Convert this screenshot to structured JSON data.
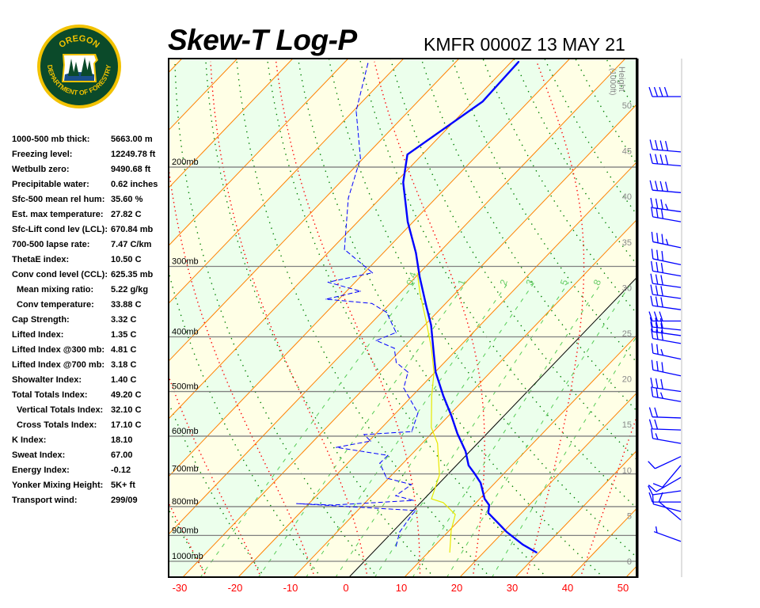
{
  "header": {
    "title": "Skew-T Log-P",
    "station_time": "KMFR 0000Z 13 MAY 21"
  },
  "logo": {
    "top_text": "OREGON",
    "bottom_text": "DEPARTMENT OF FORESTRY",
    "colors": {
      "ring": "#f2c200",
      "field": "#0b4a2a"
    }
  },
  "stats": [
    {
      "label": "1000-500 mb thick:",
      "value": "5663.00 m"
    },
    {
      "label": "Freezing level:",
      "value": "12249.78 ft"
    },
    {
      "label": "Wetbulb zero:",
      "value": "9490.68 ft"
    },
    {
      "label": "Precipitable water:",
      "value": "0.62 inches"
    },
    {
      "label": "Sfc-500 mean rel hum:",
      "value": "35.60 %"
    },
    {
      "label": "Est. max temperature:",
      "value": "27.82 C"
    },
    {
      "label": "Sfc-Lift cond lev (LCL):",
      "value": "670.84 mb"
    },
    {
      "label": "700-500 lapse rate:",
      "value": "7.47 C/km"
    },
    {
      "label": "ThetaE index:",
      "value": "10.50 C"
    },
    {
      "label": "Conv cond level (CCL):",
      "value": "625.35 mb"
    },
    {
      "label": "Mean mixing ratio:",
      "value": "5.22 g/kg",
      "indent": true
    },
    {
      "label": "Conv temperature:",
      "value": "33.88 C",
      "indent": true
    },
    {
      "label": "Cap Strength:",
      "value": "3.32 C"
    },
    {
      "label": "Lifted Index:",
      "value": "1.35 C"
    },
    {
      "label": "Lifted Index @300 mb:",
      "value": "4.81 C"
    },
    {
      "label": "Lifted Index @700 mb:",
      "value": "3.18 C"
    },
    {
      "label": "Showalter Index:",
      "value": "1.40 C"
    },
    {
      "label": "Total Totals Index:",
      "value": "49.20 C"
    },
    {
      "label": "Vertical Totals Index:",
      "value": "32.10 C",
      "indent": true
    },
    {
      "label": "Cross Totals Index:",
      "value": "17.10 C",
      "indent": true
    },
    {
      "label": "K Index:",
      "value": "18.10"
    },
    {
      "label": "Sweat Index:",
      "value": "67.00"
    },
    {
      "label": "Energy Index:",
      "value": "-0.12"
    },
    {
      "label": "Yonker Mixing Height:",
      "value": "5K+ ft"
    },
    {
      "label": "Transport wind:",
      "value": "299/09"
    }
  ],
  "chart_data": {
    "type": "skewt",
    "title": "Skew-T Log-P",
    "subtitle": "KMFR 0000Z 13 MAY 21",
    "x_ticks": [
      -30,
      -20,
      -10,
      0,
      10,
      20,
      30,
      40,
      50
    ],
    "x_unit": "C",
    "pressure_range": [
      1067,
      128
    ],
    "pressure_levels": [
      {
        "p": 200,
        "label": "200mb"
      },
      {
        "p": 300,
        "label": "300mb"
      },
      {
        "p": 400,
        "label": "400mb"
      },
      {
        "p": 500,
        "label": "500mb"
      },
      {
        "p": 600,
        "label": "600mb"
      },
      {
        "p": 700,
        "label": "700mb"
      },
      {
        "p": 800,
        "label": "800mb"
      },
      {
        "p": 900,
        "label": "900mb"
      },
      {
        "p": 1000,
        "label": "1000mb"
      }
    ],
    "height_axis": {
      "label": "Height",
      "unit_label": "(1000ft)",
      "ticks": [
        0,
        5,
        10,
        15,
        20,
        25,
        30,
        35,
        40,
        45,
        50
      ]
    },
    "mixing_ratio_labels": [
      "0.4",
      "1",
      "2",
      "3",
      "5",
      "8"
    ],
    "mixing_ratios": [
      0.4,
      1,
      2,
      3,
      5,
      8,
      12,
      20
    ],
    "colors": {
      "temperature": "#0000ff",
      "dewpoint": "#0000ff",
      "parcel": "#e8e800",
      "isotherm": "#ff8000",
      "zero_isotherm": "#000000",
      "dry_adiabat": "#008000",
      "moist_adiabat": "#ff0000",
      "mixing_ratio": "#55cc55",
      "pressure_line": "#808080",
      "band_warm": "#ffffe6",
      "band_cool": "#ecffec",
      "x_tick": "#ff0000"
    },
    "temperature": [
      [
        965,
        29.6
      ],
      [
        934,
        25.7
      ],
      [
        887,
        20.6
      ],
      [
        821,
        14.0
      ],
      [
        795,
        12.8
      ],
      [
        775,
        10.9
      ],
      [
        726,
        7.4
      ],
      [
        699,
        4.7
      ],
      [
        676,
        2.2
      ],
      [
        638,
        -0.8
      ],
      [
        594,
        -5.3
      ],
      [
        552,
        -9.5
      ],
      [
        509,
        -14.4
      ],
      [
        462,
        -19.9
      ],
      [
        426,
        -23.7
      ],
      [
        381,
        -28.9
      ],
      [
        351,
        -33.3
      ],
      [
        313,
        -39.3
      ],
      [
        284,
        -44.1
      ],
      [
        250,
        -51.0
      ],
      [
        213,
        -58.6
      ],
      [
        190,
        -62.7
      ],
      [
        153,
        -58.3
      ],
      [
        130,
        -58.7
      ]
    ],
    "dewpoint": [
      [
        940,
        3.1
      ],
      [
        887,
        1.3
      ],
      [
        826,
        0.5
      ],
      [
        813,
        0.5
      ],
      [
        790,
        -22.2
      ],
      [
        795,
        -15.5
      ],
      [
        780,
        -1.7
      ],
      [
        765,
        -5.7
      ],
      [
        731,
        -4.8
      ],
      [
        712,
        -10.4
      ],
      [
        670,
        -14.2
      ],
      [
        649,
        -14.1
      ],
      [
        628,
        -24.8
      ],
      [
        612,
        -19.7
      ],
      [
        596,
        -22.0
      ],
      [
        589,
        -13.9
      ],
      [
        546,
        -16.0
      ],
      [
        493,
        -22.9
      ],
      [
        462,
        -24.9
      ],
      [
        444,
        -28.7
      ],
      [
        419,
        -31.5
      ],
      [
        406,
        -36.1
      ],
      [
        393,
        -33.9
      ],
      [
        362,
        -39.1
      ],
      [
        349,
        -43.3
      ],
      [
        343,
        -52.3
      ],
      [
        332,
        -47.5
      ],
      [
        320,
        -54.9
      ],
      [
        308,
        -48.5
      ],
      [
        280,
        -57.6
      ],
      [
        227,
        -65.8
      ],
      [
        193,
        -70.5
      ],
      [
        159,
        -79.5
      ],
      [
        131,
        -85.6
      ]
    ],
    "parcel": [
      [
        965,
        13.9
      ],
      [
        881,
        10.3
      ],
      [
        826,
        8.3
      ],
      [
        787,
        4.1
      ],
      [
        775,
        1.3
      ],
      [
        703,
        -1.4
      ],
      [
        618,
        -7.2
      ],
      [
        579,
        -11.1
      ],
      [
        509,
        -16.5
      ],
      [
        462,
        -20.2
      ],
      [
        419,
        -24.8
      ],
      [
        374,
        -30.6
      ],
      [
        334,
        -36.5
      ],
      [
        308,
        -40.4
      ]
    ],
    "wind_barbs": [
      {
        "p": 150,
        "dir": 270,
        "kt": 40
      },
      {
        "p": 188,
        "dir": 275,
        "kt": 40
      },
      {
        "p": 199,
        "dir": 275,
        "kt": 40
      },
      {
        "p": 222,
        "dir": 275,
        "kt": 40
      },
      {
        "p": 240,
        "dir": 278,
        "kt": 35
      },
      {
        "p": 250,
        "dir": 280,
        "kt": 30
      },
      {
        "p": 278,
        "dir": 282,
        "kt": 35
      },
      {
        "p": 298,
        "dir": 282,
        "kt": 30
      },
      {
        "p": 312,
        "dir": 280,
        "kt": 30
      },
      {
        "p": 327,
        "dir": 278,
        "kt": 30
      },
      {
        "p": 342,
        "dir": 278,
        "kt": 30
      },
      {
        "p": 358,
        "dir": 278,
        "kt": 30
      },
      {
        "p": 375,
        "dir": 270,
        "kt": 30
      },
      {
        "p": 389,
        "dir": 276,
        "kt": 30
      },
      {
        "p": 398,
        "dir": 278,
        "kt": 30
      },
      {
        "p": 411,
        "dir": 280,
        "kt": 30
      },
      {
        "p": 438,
        "dir": 282,
        "kt": 25
      },
      {
        "p": 469,
        "dir": 282,
        "kt": 30
      },
      {
        "p": 500,
        "dir": 278,
        "kt": 30
      },
      {
        "p": 521,
        "dir": 280,
        "kt": 25
      },
      {
        "p": 557,
        "dir": 272,
        "kt": 20
      },
      {
        "p": 585,
        "dir": 272,
        "kt": 20
      },
      {
        "p": 618,
        "dir": 280,
        "kt": 15
      },
      {
        "p": 652,
        "dir": 245,
        "kt": 10
      },
      {
        "p": 676,
        "dir": 220,
        "kt": 10
      },
      {
        "p": 710,
        "dir": 240,
        "kt": 10
      },
      {
        "p": 750,
        "dir": 262,
        "kt": 10
      },
      {
        "p": 785,
        "dir": 270,
        "kt": 10
      },
      {
        "p": 816,
        "dir": 285,
        "kt": 10
      },
      {
        "p": 845,
        "dir": 310,
        "kt": 10
      },
      {
        "p": 922,
        "dir": 290,
        "kt": 5
      }
    ]
  }
}
